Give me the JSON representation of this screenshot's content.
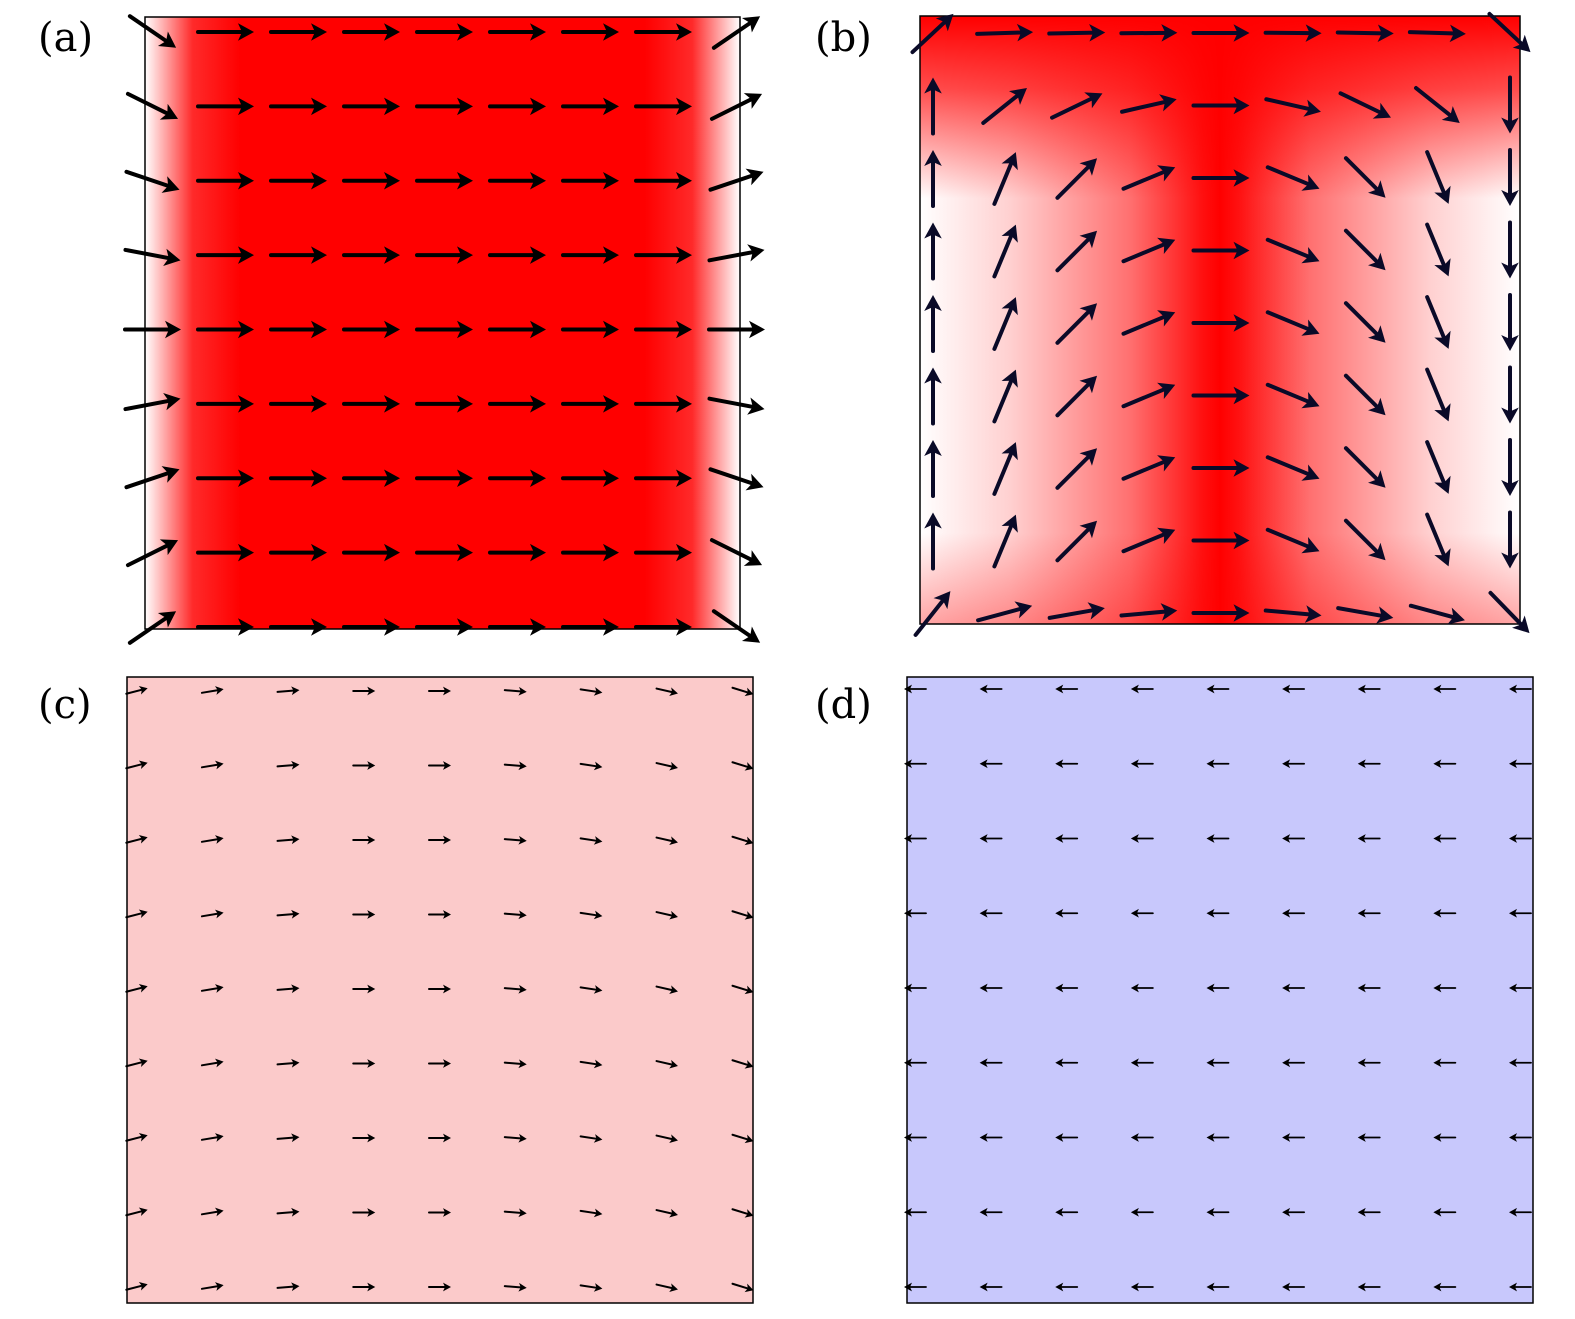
{
  "panels": [
    {
      "label": "(a)",
      "pattern": "uniform-edge-bend",
      "arrow_scale": 1.0,
      "background": "red-field",
      "rows": 9,
      "cols": 9
    },
    {
      "label": "(b)",
      "pattern": "vortex",
      "arrow_scale": 1.0,
      "background": "red-field-vortex",
      "rows": 9,
      "cols": 9
    },
    {
      "label": "(c)",
      "pattern": "uniform-edge-bend",
      "arrow_scale": 0.35,
      "background": "pale-red",
      "rows": 9,
      "cols": 9
    },
    {
      "label": "(d)",
      "pattern": "uniform-left",
      "arrow_scale": 0.32,
      "background": "pale-blue",
      "rows": 9,
      "cols": 9
    }
  ],
  "colors": {
    "strong_red": "#ff0000",
    "white": "#ffffff",
    "pale_red": "#fbcaca",
    "pale_blue": "#c8c8fc",
    "arrow": "#000000",
    "arrow_light": "#0a0a28"
  }
}
